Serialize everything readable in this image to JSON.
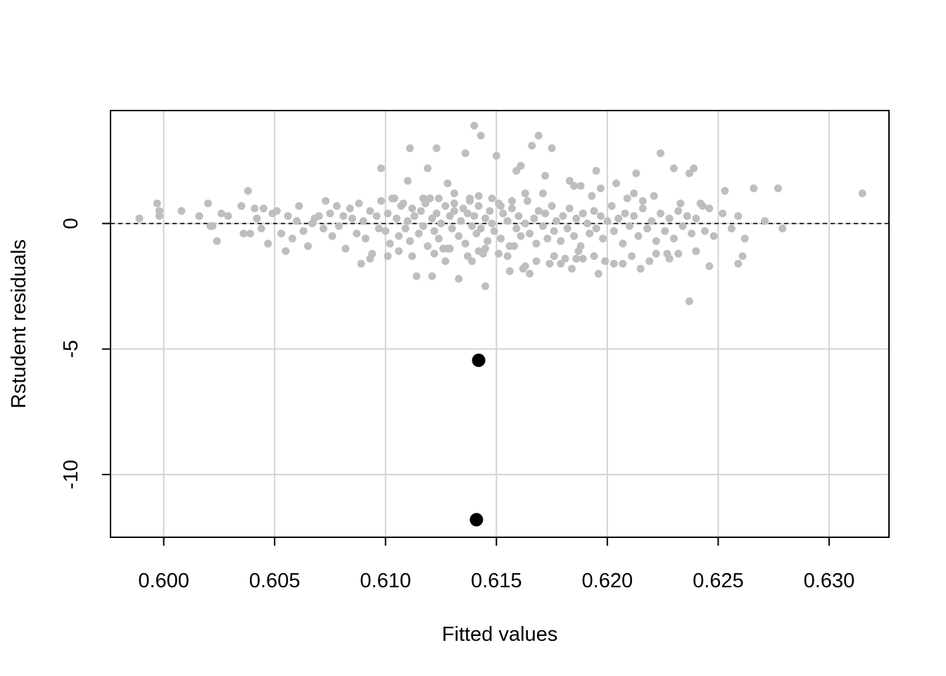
{
  "chart_data": {
    "type": "scatter",
    "title": "",
    "xlabel": "Fitted values",
    "ylabel": "Rstudent residuals",
    "xlim": [
      0.5976,
      0.6327
    ],
    "ylim": [
      -12.5,
      4.5
    ],
    "x_ticks": [
      0.6,
      0.605,
      0.61,
      0.615,
      0.62,
      0.625,
      0.63
    ],
    "x_tick_labels": [
      "0.600",
      "0.605",
      "0.610",
      "0.615",
      "0.620",
      "0.625",
      "0.630"
    ],
    "y_ticks": [
      -10,
      -5,
      0
    ],
    "y_tick_labels": [
      "-10",
      "-5",
      "0"
    ],
    "grid": true,
    "reference_line": {
      "y": 0,
      "style": "dashed"
    },
    "colors": {
      "points": "#bebebe",
      "outliers": "#000000",
      "grid": "#d3d3d3",
      "frame": "#000000",
      "reference_line": "#000000"
    },
    "series": [
      {
        "role": "observations",
        "x": [
          0.5989,
          0.5997,
          0.5998,
          0.5998,
          0.6008,
          0.6016,
          0.602,
          0.6021,
          0.6022,
          0.6024,
          0.6026,
          0.6029,
          0.6035,
          0.6036,
          0.6038,
          0.6039,
          0.6041,
          0.6042,
          0.6044,
          0.6045,
          0.6047,
          0.6049,
          0.6051,
          0.6053,
          0.6055,
          0.6056,
          0.6058,
          0.606,
          0.6061,
          0.6063,
          0.6065,
          0.6067,
          0.6068,
          0.607,
          0.6072,
          0.6073,
          0.6075,
          0.6076,
          0.6078,
          0.6079,
          0.6081,
          0.6082,
          0.6084,
          0.6085,
          0.6087,
          0.6088,
          0.609,
          0.6091,
          0.6093,
          0.6094,
          0.6096,
          0.6097,
          0.6098,
          0.61,
          0.6101,
          0.6102,
          0.6103,
          0.6105,
          0.6106,
          0.6107,
          0.6109,
          0.611,
          0.6111,
          0.6112,
          0.6113,
          0.6115,
          0.6116,
          0.6117,
          0.6118,
          0.6119,
          0.6121,
          0.6122,
          0.6123,
          0.6124,
          0.6125,
          0.6127,
          0.6128,
          0.6129,
          0.613,
          0.6131,
          0.6133,
          0.6134,
          0.6135,
          0.6136,
          0.6137,
          0.6139,
          0.614,
          0.6141,
          0.6142,
          0.6143,
          0.6145,
          0.6146,
          0.6147,
          0.6148,
          0.6149,
          0.6151,
          0.6152,
          0.6153,
          0.6155,
          0.6156,
          0.6157,
          0.6159,
          0.616,
          0.6161,
          0.6163,
          0.6164,
          0.6165,
          0.6167,
          0.6168,
          0.6169,
          0.6171,
          0.6172,
          0.6173,
          0.6175,
          0.6176,
          0.6177,
          0.6179,
          0.618,
          0.6182,
          0.6183,
          0.6185,
          0.6186,
          0.6188,
          0.6189,
          0.6191,
          0.6192,
          0.6194,
          0.6195,
          0.6197,
          0.6198,
          0.62,
          0.6202,
          0.6203,
          0.6205,
          0.6207,
          0.6208,
          0.621,
          0.6212,
          0.6214,
          0.6216,
          0.6218,
          0.622,
          0.6222,
          0.6224,
          0.6226,
          0.6228,
          0.623,
          0.6232,
          0.6234,
          0.6236,
          0.6238,
          0.624,
          0.6242,
          0.6244,
          0.6246,
          0.6248,
          0.6252,
          0.6256,
          0.6259,
          0.6262,
          0.6266,
          0.6271,
          0.6277,
          0.6279,
          0.6315,
          0.6111,
          0.6123,
          0.6131,
          0.6136,
          0.614,
          0.6143,
          0.6159,
          0.6166,
          0.6169,
          0.6175,
          0.6195,
          0.6224,
          0.6239,
          0.6119,
          0.6128,
          0.6138,
          0.615,
          0.6161,
          0.6188,
          0.6213,
          0.623,
          0.6253,
          0.6098,
          0.611,
          0.612,
          0.6131,
          0.6142,
          0.6152,
          0.6163,
          0.6172,
          0.6183,
          0.6193,
          0.6204,
          0.6212,
          0.6221,
          0.6237,
          0.6108,
          0.6124,
          0.6138,
          0.6148,
          0.6157,
          0.6171,
          0.6185,
          0.6197,
          0.6209,
          0.6216,
          0.6233,
          0.6243,
          0.6104,
          0.6117,
          0.6129,
          0.6142,
          0.6155,
          0.6168,
          0.6181,
          0.6194,
          0.6207,
          0.6219,
          0.6227,
          0.6246,
          0.6261,
          0.6093,
          0.6112,
          0.6127,
          0.6137,
          0.6151,
          0.6162,
          0.6176,
          0.6189,
          0.6203,
          0.6215,
          0.6232,
          0.6259,
          0.6101,
          0.6121,
          0.6139,
          0.6156,
          0.6174,
          0.6196,
          0.6215,
          0.6228,
          0.6089,
          0.6114,
          0.6133,
          0.6145,
          0.6165,
          0.6184,
          0.6199,
          0.6222,
          0.6106,
          0.6126,
          0.6144,
          0.6163,
          0.6179,
          0.6186,
          0.6211,
          0.624,
          0.6122,
          0.6145,
          0.6158,
          0.6187,
          0.6237
        ],
        "y": [
          0.2,
          0.8,
          0.5,
          0.3,
          0.5,
          0.3,
          0.8,
          -0.1,
          -0.1,
          -0.7,
          0.4,
          0.3,
          0.7,
          -0.4,
          1.3,
          -0.4,
          0.6,
          0.2,
          -0.2,
          0.6,
          -0.8,
          0.4,
          0.5,
          -0.4,
          -1.1,
          0.3,
          -0.6,
          0.1,
          0.7,
          -0.3,
          -0.9,
          0.0,
          0.2,
          0.3,
          -0.2,
          0.9,
          0.4,
          -0.5,
          0.7,
          -0.1,
          0.3,
          -1.0,
          0.6,
          0.2,
          -0.4,
          0.8,
          0.1,
          -0.6,
          0.5,
          -1.2,
          0.3,
          -0.2,
          0.9,
          -0.3,
          0.4,
          -0.8,
          1.0,
          0.2,
          -0.5,
          0.7,
          -0.2,
          0.1,
          -0.7,
          0.6,
          0.3,
          -0.4,
          0.5,
          -0.1,
          0.8,
          -0.9,
          0.2,
          -0.3,
          0.4,
          -0.6,
          0.0,
          0.7,
          -1.0,
          0.3,
          -0.2,
          0.5,
          -0.5,
          0.1,
          0.6,
          -0.8,
          0.4,
          -0.1,
          0.3,
          -0.4,
          0.7,
          -0.2,
          0.2,
          -0.7,
          0.5,
          0.0,
          -0.3,
          0.8,
          -0.6,
          0.4,
          0.1,
          -0.9,
          0.6,
          -0.2,
          0.3,
          -0.5,
          0.0,
          0.9,
          -0.4,
          0.2,
          -0.8,
          0.5,
          -0.1,
          0.4,
          -0.6,
          0.7,
          -0.3,
          0.1,
          -0.7,
          0.3,
          -0.2,
          0.6,
          -0.5,
          0.2,
          -0.9,
          0.4,
          0.0,
          -0.4,
          0.5,
          -0.2,
          0.3,
          -0.6,
          0.1,
          0.7,
          -0.3,
          0.2,
          -0.8,
          0.4,
          -0.1,
          0.3,
          -0.5,
          0.6,
          -0.2,
          0.1,
          -0.7,
          0.4,
          -0.3,
          0.2,
          -0.6,
          0.5,
          -0.1,
          0.3,
          -0.4,
          0.2,
          0.8,
          -0.3,
          0.6,
          -0.5,
          0.4,
          -0.2,
          0.3,
          -0.6,
          1.4,
          0.1,
          1.4,
          -0.2,
          1.2,
          3.0,
          3.0,
          1.2,
          2.8,
          3.9,
          3.5,
          2.1,
          3.1,
          3.5,
          3.0,
          2.1,
          2.8,
          2.2,
          2.2,
          1.6,
          0.9,
          2.7,
          2.3,
          1.5,
          2.0,
          2.2,
          1.3,
          2.2,
          1.7,
          1.0,
          0.8,
          1.1,
          0.7,
          1.2,
          1.9,
          1.7,
          1.1,
          1.6,
          1.2,
          1.1,
          2.0,
          0.8,
          1.0,
          1.0,
          1.0,
          0.9,
          1.2,
          1.5,
          1.4,
          1.0,
          0.9,
          0.8,
          0.7,
          1.0,
          1.0,
          -1.0,
          -1.1,
          -1.3,
          -1.5,
          -1.4,
          -1.3,
          -1.6,
          -1.5,
          -1.2,
          -1.7,
          -1.3,
          -1.4,
          -1.3,
          -1.5,
          -1.3,
          -1.2,
          -1.8,
          -1.3,
          -1.4,
          -1.6,
          -1.8,
          -1.2,
          -1.6,
          -1.3,
          -2.1,
          -1.5,
          -1.9,
          -1.6,
          -2.0,
          -1.8,
          -1.4,
          -1.6,
          -2.1,
          -2.2,
          -2.5,
          -2.0,
          -1.8,
          -1.5,
          -1.2,
          -1.1,
          -1.0,
          -1.2,
          -1.7,
          -1.6,
          -1.4,
          -1.3,
          -1.1,
          -1.2,
          -1.0,
          -0.9,
          -1.1,
          -3.1
        ]
      },
      {
        "role": "outliers",
        "x": [
          0.6142,
          0.6141
        ],
        "y": [
          -5.45,
          -11.8
        ]
      }
    ]
  }
}
